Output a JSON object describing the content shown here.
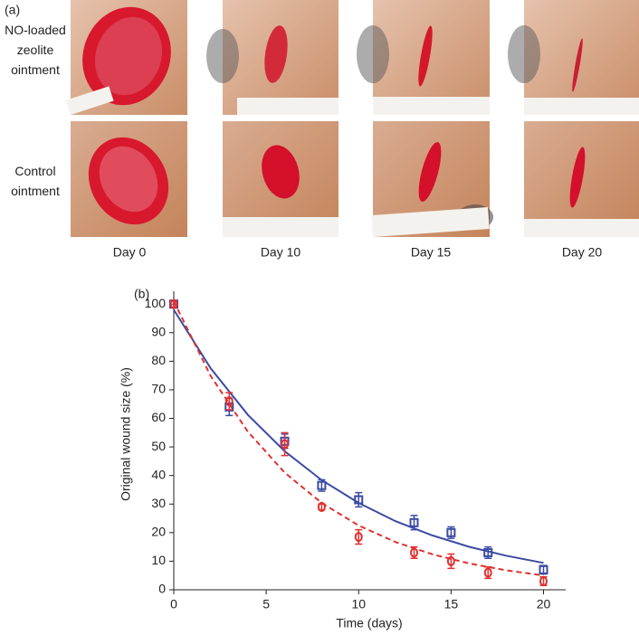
{
  "figure": {
    "panel_label": "(a)",
    "rows": [
      "NO-loaded zeolite ointment",
      "Control ointment"
    ],
    "columns": [
      "Day 0",
      "Day 10",
      "Day 15",
      "Day 20"
    ]
  },
  "chart_data": {
    "type": "scatter",
    "panel_label": "(b)",
    "xlabel": "Time (days)",
    "ylabel": "Original wound size (%)",
    "xlim": [
      0,
      21.2
    ],
    "ylim": [
      0,
      104.5
    ],
    "xticks": [
      0,
      5,
      10,
      15,
      20
    ],
    "yticks": [
      0,
      10,
      20,
      30,
      40,
      50,
      60,
      70,
      80,
      90,
      100
    ],
    "series": [
      {
        "color": "#3b4ba3",
        "marker": "square",
        "x": [
          0,
          3,
          6,
          8,
          10,
          13,
          15,
          17,
          20
        ],
        "values": [
          100,
          64,
          52,
          36.5,
          31.5,
          23.5,
          20,
          13,
          7
        ],
        "errors": [
          1,
          3,
          2.5,
          2,
          2.5,
          2.5,
          2,
          2,
          1.5
        ]
      },
      {
        "color": "#e0312f",
        "marker": "circle",
        "x": [
          0,
          3,
          6,
          8,
          10,
          13,
          15,
          17,
          20
        ],
        "values": [
          100,
          66,
          51,
          29,
          18.5,
          13,
          10,
          6,
          3
        ],
        "errors": [
          1,
          3,
          4,
          1,
          2.5,
          2,
          2.5,
          2,
          1.5
        ]
      }
    ],
    "fits": [
      {
        "color": "#3b4ba3",
        "dashed": false,
        "x": [
          0,
          2,
          4,
          6,
          8,
          10,
          12,
          14,
          16,
          18,
          20
        ],
        "values": [
          98,
          77.5,
          61.3,
          48.5,
          38.4,
          30.4,
          24,
          19,
          15,
          11.9,
          9.4
        ]
      },
      {
        "color": "#e0312f",
        "dashed": true,
        "x": [
          0,
          2,
          4,
          6,
          8,
          10,
          12,
          14,
          16,
          18,
          20
        ],
        "values": [
          101,
          74.8,
          55.4,
          41,
          30.4,
          22.5,
          16.7,
          12.4,
          9.2,
          6.8,
          5
        ]
      }
    ]
  }
}
